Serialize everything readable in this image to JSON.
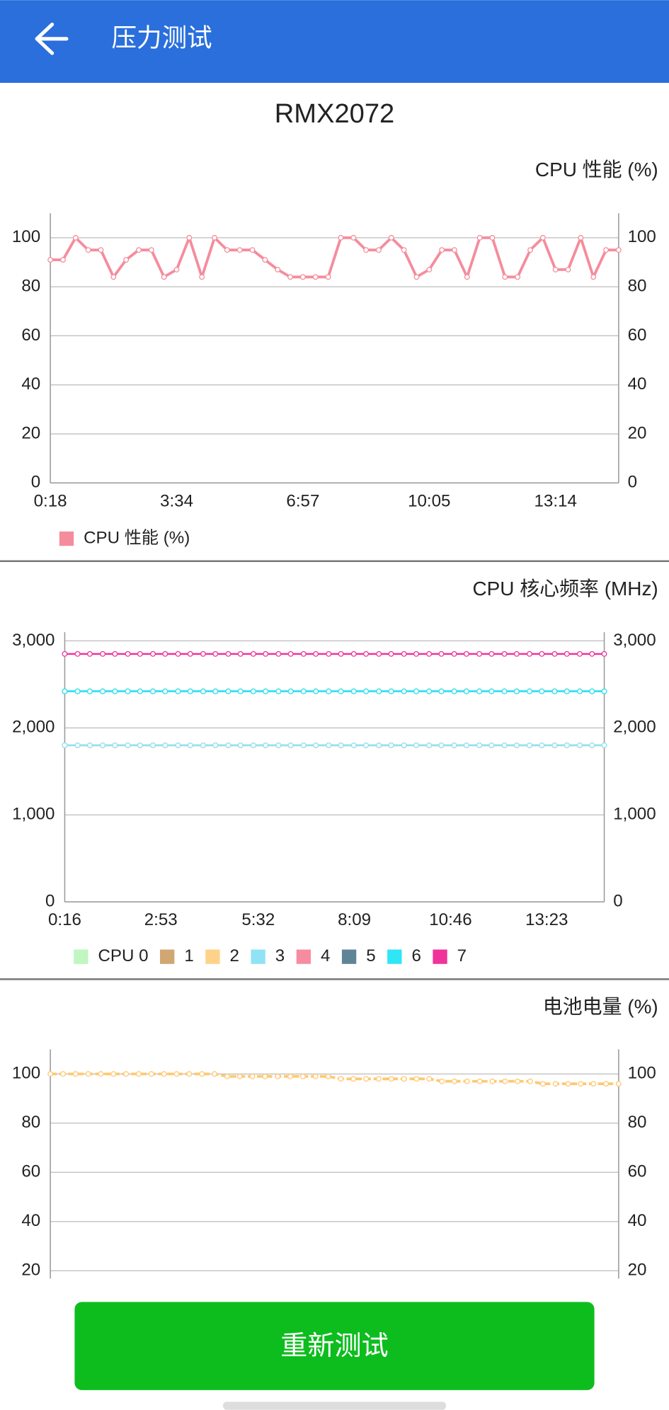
{
  "header": {
    "title": "压力测试"
  },
  "device": "RMX2072",
  "chart_data": [
    {
      "type": "line",
      "title": "CPU 性能 (%)",
      "categories": [
        "0:18",
        null,
        null,
        null,
        null,
        null,
        null,
        null,
        null,
        null,
        "3:34",
        null,
        null,
        null,
        null,
        null,
        null,
        null,
        null,
        null,
        "6:57",
        null,
        null,
        null,
        null,
        null,
        null,
        null,
        null,
        null,
        "10:05",
        null,
        null,
        null,
        null,
        null,
        null,
        null,
        null,
        null,
        "13:14",
        null,
        null,
        null,
        null,
        null
      ],
      "series": [
        {
          "name": "CPU 性能 (%)",
          "color": "#f58c9c",
          "values": [
            91,
            91,
            100,
            95,
            95,
            84,
            91,
            95,
            95,
            84,
            87,
            100,
            84,
            100,
            95,
            95,
            95,
            91,
            87,
            84,
            84,
            84,
            84,
            100,
            100,
            95,
            95,
            100,
            95,
            84,
            87,
            95,
            95,
            84,
            100,
            100,
            84,
            84,
            95,
            100,
            87,
            87,
            100,
            84,
            95,
            95
          ]
        }
      ],
      "ylim": [
        0,
        110
      ],
      "yticks": [
        0,
        20,
        40,
        60,
        80,
        100
      ],
      "grid": true,
      "right_axis": true,
      "markers": true,
      "legend": true
    },
    {
      "type": "line",
      "title": "CPU 核心频率 (MHz)",
      "x": [
        16,
        37,
        57,
        78,
        98,
        119,
        139,
        160,
        180,
        201,
        221,
        242,
        262,
        283,
        303,
        324,
        344,
        365,
        385,
        406,
        426,
        447,
        467,
        488,
        508,
        529,
        549,
        570,
        590,
        611,
        631,
        652,
        672,
        693,
        713,
        734,
        754,
        775,
        795,
        816,
        836,
        857,
        877,
        897
      ],
      "xlim": [
        16,
        897
      ],
      "xticks": [
        {
          "value": 16,
          "label": "0:16"
        },
        {
          "value": 173,
          "label": "2:53"
        },
        {
          "value": 332,
          "label": "5:32"
        },
        {
          "value": 489,
          "label": "8:09"
        },
        {
          "value": 646,
          "label": "10:46"
        },
        {
          "value": 803,
          "label": "13:23"
        }
      ],
      "ylim": [
        0,
        3100
      ],
      "yticks": [
        0,
        {
          "value": 1000,
          "label": "1,000"
        },
        {
          "value": 2000,
          "label": "2,000"
        },
        {
          "value": 3000,
          "label": "3,000"
        }
      ],
      "grid": true,
      "right_axis": true,
      "markers": true,
      "legend": true,
      "series": [
        {
          "name": "CPU 0",
          "color": "#c1f5c1",
          "values": [
            1800,
            1800,
            1800,
            1800,
            1800,
            1800,
            1800,
            1800,
            1800,
            1800,
            1800,
            1800,
            1800,
            1800,
            1800,
            1800,
            1800,
            1800,
            1800,
            1800,
            1800,
            1800,
            1800,
            1800,
            1800,
            1800,
            1800,
            1800,
            1800,
            1800,
            1800,
            1800,
            1800,
            1800,
            1800,
            1800,
            1800,
            1800,
            1800,
            1800,
            1800,
            1800,
            1800,
            1800
          ]
        },
        {
          "name": "1",
          "color": "#d0a673",
          "values": [
            1800,
            1800,
            1800,
            1800,
            1800,
            1800,
            1800,
            1800,
            1800,
            1800,
            1800,
            1800,
            1800,
            1800,
            1800,
            1800,
            1800,
            1800,
            1800,
            1800,
            1800,
            1800,
            1800,
            1800,
            1800,
            1800,
            1800,
            1800,
            1800,
            1800,
            1800,
            1800,
            1800,
            1800,
            1800,
            1800,
            1800,
            1800,
            1800,
            1800,
            1800,
            1800,
            1800,
            1800
          ]
        },
        {
          "name": "2",
          "color": "#ffd28a",
          "values": [
            1800,
            1800,
            1800,
            1800,
            1800,
            1800,
            1800,
            1800,
            1800,
            1800,
            1800,
            1800,
            1800,
            1800,
            1800,
            1800,
            1800,
            1800,
            1800,
            1800,
            1800,
            1800,
            1800,
            1800,
            1800,
            1800,
            1800,
            1800,
            1800,
            1800,
            1800,
            1800,
            1800,
            1800,
            1800,
            1800,
            1800,
            1800,
            1800,
            1800,
            1800,
            1800,
            1800,
            1800
          ]
        },
        {
          "name": "3",
          "color": "#8fe3f5",
          "values": [
            1800,
            1800,
            1800,
            1800,
            1800,
            1800,
            1800,
            1800,
            1800,
            1800,
            1800,
            1800,
            1800,
            1800,
            1800,
            1800,
            1800,
            1800,
            1800,
            1800,
            1800,
            1800,
            1800,
            1800,
            1800,
            1800,
            1800,
            1800,
            1800,
            1800,
            1800,
            1800,
            1800,
            1800,
            1800,
            1800,
            1800,
            1800,
            1800,
            1800,
            1800,
            1800,
            1800,
            1800
          ]
        },
        {
          "name": "4",
          "color": "#f78ca0",
          "values": [
            2420,
            2420,
            2420,
            2420,
            2420,
            2420,
            2420,
            2420,
            2420,
            2420,
            2420,
            2420,
            2420,
            2420,
            2420,
            2420,
            2420,
            2420,
            2420,
            2420,
            2420,
            2420,
            2420,
            2420,
            2420,
            2420,
            2420,
            2420,
            2420,
            2420,
            2420,
            2420,
            2420,
            2420,
            2420,
            2420,
            2420,
            2420,
            2420,
            2420,
            2420,
            2420,
            2420,
            2420
          ]
        },
        {
          "name": "5",
          "color": "#5f8498",
          "values": [
            2420,
            2420,
            2420,
            2420,
            2420,
            2420,
            2420,
            2420,
            2420,
            2420,
            2420,
            2420,
            2420,
            2420,
            2420,
            2420,
            2420,
            2420,
            2420,
            2420,
            2420,
            2420,
            2420,
            2420,
            2420,
            2420,
            2420,
            2420,
            2420,
            2420,
            2420,
            2420,
            2420,
            2420,
            2420,
            2420,
            2420,
            2420,
            2420,
            2420,
            2420,
            2420,
            2420,
            2420
          ]
        },
        {
          "name": "6",
          "color": "#2ee6f5",
          "values": [
            2420,
            2420,
            2420,
            2420,
            2420,
            2420,
            2420,
            2420,
            2420,
            2420,
            2420,
            2420,
            2420,
            2420,
            2420,
            2420,
            2420,
            2420,
            2420,
            2420,
            2420,
            2420,
            2420,
            2420,
            2420,
            2420,
            2420,
            2420,
            2420,
            2420,
            2420,
            2420,
            2420,
            2420,
            2420,
            2420,
            2420,
            2420,
            2420,
            2420,
            2420,
            2420,
            2420,
            2420
          ]
        },
        {
          "name": "7",
          "color": "#f0339a",
          "values": [
            2850,
            2850,
            2850,
            2850,
            2850,
            2850,
            2850,
            2850,
            2850,
            2850,
            2850,
            2850,
            2850,
            2850,
            2850,
            2850,
            2850,
            2850,
            2850,
            2850,
            2850,
            2850,
            2850,
            2850,
            2850,
            2850,
            2850,
            2850,
            2850,
            2850,
            2850,
            2850,
            2850,
            2850,
            2850,
            2850,
            2850,
            2850,
            2850,
            2850,
            2850,
            2850,
            2850,
            2850
          ]
        }
      ]
    },
    {
      "type": "line",
      "title": "电池电量 (%)",
      "color": "#ffc870",
      "dashed": true,
      "markers": true,
      "values": [
        100,
        100,
        100,
        100,
        100,
        100,
        100,
        100,
        100,
        100,
        100,
        100,
        100,
        100,
        99,
        99,
        99,
        99,
        99,
        99,
        99,
        99,
        99,
        98,
        98,
        98,
        98,
        98,
        98,
        98,
        98,
        97,
        97,
        97,
        97,
        97,
        97,
        97,
        97,
        96,
        96,
        96,
        96,
        96,
        96,
        96
      ],
      "ylim": [
        0,
        110
      ],
      "yticks": [
        20,
        40,
        60,
        80,
        100
      ],
      "grid": true,
      "right_axis": true
    }
  ],
  "button": "重新测试"
}
